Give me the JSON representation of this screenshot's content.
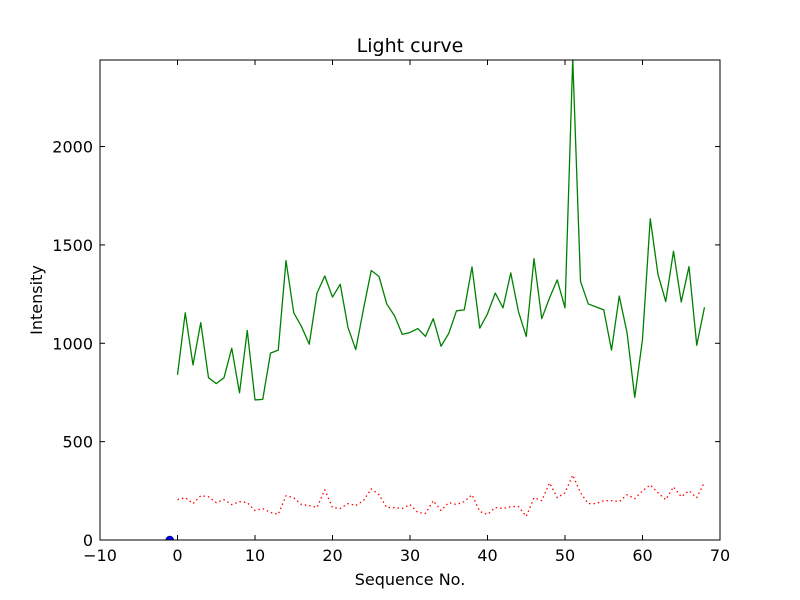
{
  "chart_data": {
    "type": "line",
    "title": "Light curve",
    "xlabel": "Sequence No.",
    "ylabel": "Intensity",
    "xlim": [
      -10,
      70
    ],
    "ylim": [
      0,
      2440
    ],
    "x_ticks": [
      -10,
      0,
      10,
      20,
      30,
      40,
      50,
      60,
      70
    ],
    "y_ticks": [
      0,
      500,
      1000,
      1500,
      2000
    ],
    "grid": false,
    "legend": "none",
    "series": [
      {
        "color": "#008000",
        "line_style": "solid",
        "x": [
          0,
          1,
          2,
          3,
          4,
          5,
          6,
          7,
          8,
          9,
          10,
          11,
          12,
          13,
          14,
          15,
          16,
          17,
          18,
          19,
          20,
          21,
          22,
          23,
          24,
          25,
          26,
          27,
          28,
          29,
          30,
          31,
          32,
          33,
          34,
          35,
          36,
          37,
          38,
          39,
          40,
          41,
          42,
          43,
          44,
          45,
          46,
          47,
          48,
          49,
          50,
          51,
          52,
          53,
          54,
          55,
          56,
          57,
          58,
          59,
          60,
          61,
          62,
          63,
          64,
          65,
          66,
          67,
          68
        ],
        "values": [
          840,
          1155,
          890,
          1105,
          825,
          795,
          825,
          975,
          748,
          1065,
          712,
          715,
          950,
          965,
          1420,
          1155,
          1085,
          995,
          1255,
          1342,
          1235,
          1300,
          1080,
          968,
          1175,
          1370,
          1340,
          1200,
          1140,
          1045,
          1055,
          1075,
          1035,
          1125,
          985,
          1050,
          1165,
          1170,
          1388,
          1077,
          1150,
          1255,
          1180,
          1358,
          1160,
          1035,
          1430,
          1125,
          1230,
          1322,
          1180,
          2445,
          1315,
          1200,
          1185,
          1170,
          965,
          1240,
          1055,
          725,
          1020,
          1633,
          1350,
          1212,
          1468,
          1210,
          1390,
          990,
          1183
        ]
      },
      {
        "color": "#ff0000",
        "line_style": "dotted",
        "x": [
          0,
          1,
          2,
          3,
          4,
          5,
          6,
          7,
          8,
          9,
          10,
          11,
          12,
          13,
          14,
          15,
          16,
          17,
          18,
          19,
          20,
          21,
          22,
          23,
          24,
          25,
          26,
          27,
          28,
          29,
          30,
          31,
          32,
          33,
          34,
          35,
          36,
          37,
          38,
          39,
          40,
          41,
          42,
          43,
          44,
          45,
          46,
          47,
          48,
          49,
          50,
          51,
          52,
          53,
          54,
          55,
          56,
          57,
          58,
          59,
          60,
          61,
          62,
          63,
          64,
          65,
          66,
          67,
          68
        ],
        "values": [
          205,
          215,
          185,
          225,
          220,
          190,
          205,
          180,
          195,
          190,
          150,
          160,
          140,
          130,
          225,
          215,
          180,
          175,
          165,
          255,
          165,
          160,
          185,
          175,
          200,
          260,
          230,
          165,
          165,
          160,
          180,
          140,
          135,
          200,
          150,
          190,
          180,
          195,
          230,
          145,
          130,
          165,
          160,
          170,
          170,
          120,
          215,
          200,
          290,
          215,
          240,
          330,
          240,
          185,
          185,
          200,
          200,
          195,
          230,
          210,
          250,
          280,
          240,
          205,
          270,
          220,
          250,
          215,
          295
        ]
      },
      {
        "color": "#0000ff",
        "line_style": "marker",
        "x": [
          -1
        ],
        "values": [
          0
        ]
      }
    ]
  }
}
